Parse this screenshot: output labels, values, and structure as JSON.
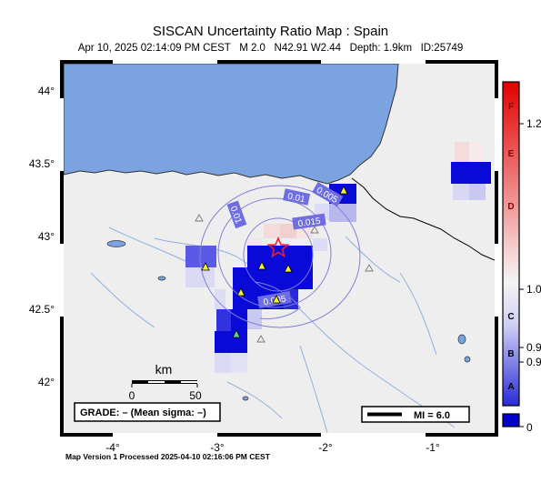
{
  "header": {
    "title": "SISCAN Uncertainty Ratio Map : Spain",
    "subtitle": "Apr 10, 2025 02:14:09 PM CEST   M 2.0   N42.91 W2.44   Depth: 1.9km   ID:25749"
  },
  "footer": {
    "text": "Map Version 1 Processed 2025-04-10 02:16:06 PM CEST"
  },
  "map": {
    "lon_ticks": [
      "-4°",
      "-3°",
      "-2°",
      "-1°"
    ],
    "lat_ticks": [
      "44°",
      "43.5°",
      "43°",
      "42.5°",
      "42°"
    ],
    "contour_labels": [
      "0.01",
      "0.01",
      "0.005",
      "0.015",
      "0.005"
    ],
    "scale_bar": {
      "unit": "km",
      "ticks": [
        "0",
        "50"
      ]
    },
    "grade_box": "GRADE: – (Mean sigma: –)",
    "mi_legend": "MI = 6.0",
    "colors": {
      "sea": "#7aa3df",
      "land": "#eeeeee",
      "epicenter": "#e8212a",
      "station": "#f5f22a"
    }
  },
  "colorbar": {
    "letters": [
      "F",
      "E",
      "D",
      "C",
      "B",
      "A"
    ],
    "values": [
      "1.2",
      "1.0",
      "0.9",
      "0.9",
      "0"
    ],
    "colors": {
      "top": "#e30000",
      "middle": "#f4f4f4",
      "bottom": "#0000c8"
    }
  }
}
